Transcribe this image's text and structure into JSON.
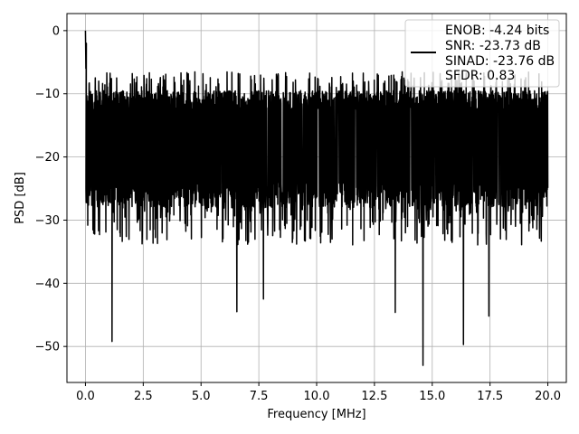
{
  "chart_data": {
    "type": "line",
    "title": "",
    "xlabel": "Frequency [MHz]",
    "ylabel": "PSD [dB]",
    "xlim": [
      -0.8,
      20.8
    ],
    "ylim": [
      -55.7,
      2.7
    ],
    "xticks": [
      0.0,
      2.5,
      5.0,
      7.5,
      10.0,
      12.5,
      15.0,
      17.5,
      20.0
    ],
    "xtick_labels": [
      "0.0",
      "2.5",
      "5.0",
      "7.5",
      "10.0",
      "12.5",
      "15.0",
      "17.5",
      "20.0"
    ],
    "yticks": [
      0,
      -10,
      -20,
      -30,
      -40,
      -50
    ],
    "ytick_labels": [
      "0",
      "−10",
      "−20",
      "−30",
      "−40",
      "−50"
    ],
    "grid": true,
    "legend_placement": "top-right",
    "series": [
      {
        "name": "ENOB: -4.24 bits",
        "color": "#000000",
        "x_range": [
          0,
          20
        ],
        "typical_band_db": [
          -26,
          -11
        ],
        "peak_db": 0,
        "notable_dips": [
          {
            "x": 1.15,
            "y": -49.2
          },
          {
            "x": 6.55,
            "y": -44.5
          },
          {
            "x": 7.7,
            "y": -42.5
          },
          {
            "x": 13.4,
            "y": -44.6
          },
          {
            "x": 14.6,
            "y": -53.0
          },
          {
            "x": 16.35,
            "y": -49.7
          },
          {
            "x": 17.45,
            "y": -45.2
          }
        ]
      }
    ],
    "legend_entries": [
      "ENOB: -4.24 bits",
      "SNR: -23.73 dB",
      "SINAD: -23.76 dB",
      "SFDR: 0.83"
    ]
  }
}
